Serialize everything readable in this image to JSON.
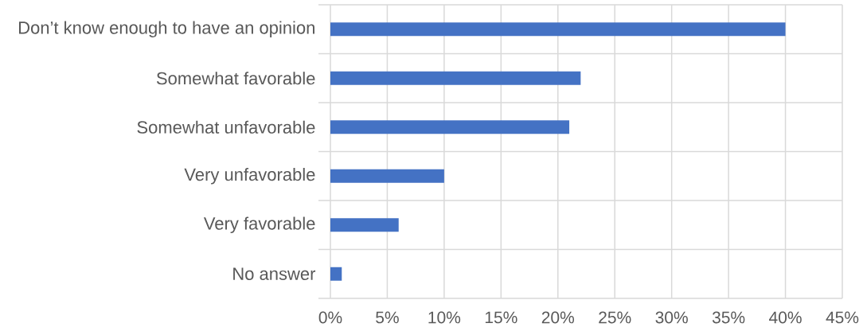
{
  "chart_data": {
    "type": "bar",
    "orientation": "horizontal",
    "categories": [
      "Don’t know enough to have an opinion",
      "Somewhat favorable",
      "Somewhat unfavorable",
      "Very unfavorable",
      "Very favorable",
      "No answer"
    ],
    "values": [
      40,
      22,
      21,
      10,
      6,
      1
    ],
    "color": "#4472c4",
    "xlim": [
      0,
      45
    ],
    "xticks": [
      {
        "value": 0,
        "label": "0%"
      },
      {
        "value": 5,
        "label": "5%"
      },
      {
        "value": 10,
        "label": "10%"
      },
      {
        "value": 15,
        "label": "15%"
      },
      {
        "value": 20,
        "label": "20%"
      },
      {
        "value": 25,
        "label": "25%"
      },
      {
        "value": 30,
        "label": "30%"
      },
      {
        "value": 35,
        "label": "35%"
      },
      {
        "value": 40,
        "label": "40%"
      },
      {
        "value": 45,
        "label": "45%"
      }
    ],
    "grid": true
  }
}
